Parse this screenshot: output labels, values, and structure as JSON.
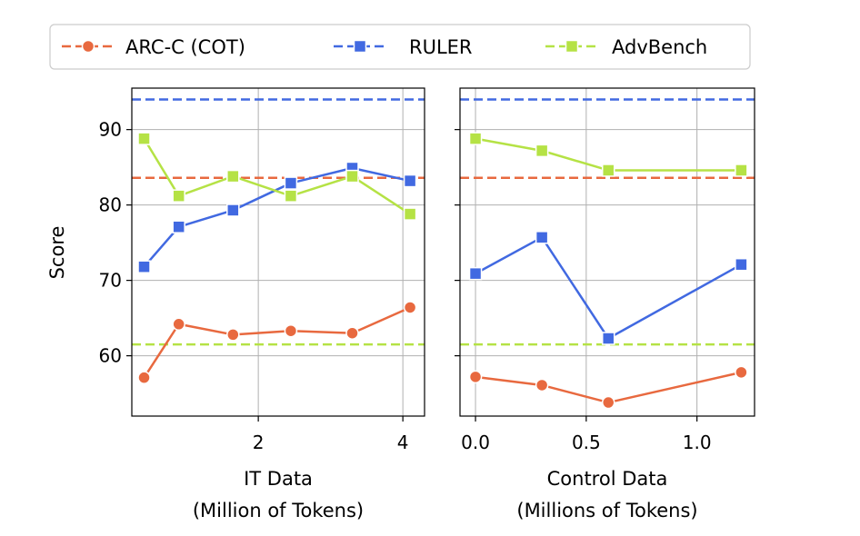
{
  "chart_data": {
    "type": "line",
    "ylabel": "Score",
    "ylim": [
      52,
      95.5
    ],
    "yticks": [
      60,
      70,
      80,
      90
    ],
    "grid": true,
    "legend_position": "top",
    "series_styles": [
      {
        "name": "ARC-C (COT)",
        "color": "#e8693f",
        "marker": "circle"
      },
      {
        "name": "RULER",
        "color": "#4169e1",
        "marker": "square"
      },
      {
        "name": "AdvBench",
        "color": "#b5e245",
        "marker": "square"
      }
    ],
    "panels": [
      {
        "xlabel_line1": "IT Data",
        "xlabel_line2": "(Million of Tokens)",
        "xlim": [
          0.25,
          4.3
        ],
        "xticks": [
          2,
          4
        ],
        "xtick_labels": [
          "2",
          "4"
        ],
        "x": [
          0.42,
          0.9,
          1.65,
          2.45,
          3.3,
          4.1
        ],
        "series": [
          {
            "name": "ARC-C (COT)",
            "values": [
              57.1,
              64.2,
              62.8,
              63.3,
              63.0,
              66.4
            ],
            "baseline": 83.6
          },
          {
            "name": "RULER",
            "values": [
              71.8,
              77.1,
              79.3,
              82.9,
              84.9,
              83.2
            ],
            "baseline": 94.0
          },
          {
            "name": "AdvBench",
            "values": [
              88.8,
              81.2,
              83.8,
              81.2,
              83.8,
              78.8
            ],
            "baseline": 61.5
          }
        ]
      },
      {
        "xlabel_line1": "Control Data",
        "xlabel_line2": "(Millions of Tokens)",
        "xlim": [
          -0.07,
          1.26
        ],
        "xticks": [
          0.0,
          0.5,
          1.0
        ],
        "xtick_labels": [
          "0.0",
          "0.5",
          "1.0"
        ],
        "x": [
          0.0,
          0.3,
          0.6,
          1.2
        ],
        "series": [
          {
            "name": "ARC-C (COT)",
            "values": [
              57.2,
              56.1,
              53.8,
              57.8
            ],
            "baseline": 83.6
          },
          {
            "name": "RULER",
            "values": [
              70.9,
              75.7,
              62.3,
              72.1
            ],
            "baseline": 94.0
          },
          {
            "name": "AdvBench",
            "values": [
              88.8,
              87.2,
              84.6,
              84.6
            ],
            "baseline": 61.5
          }
        ]
      }
    ]
  }
}
